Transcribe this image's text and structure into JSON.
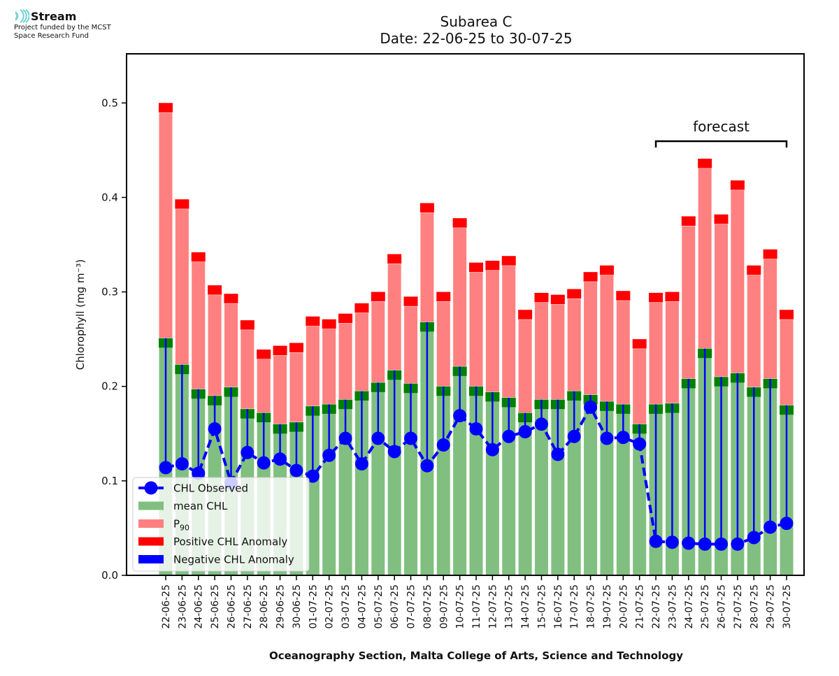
{
  "logo": {
    "name": "Stream",
    "funding_line1": "Project funded by the MCST",
    "funding_line2": "Space Research Fund",
    "icon": "stream-waves-icon",
    "color": "#6fd0d0"
  },
  "chart_data": {
    "type": "bar",
    "title_line1": "Subarea C",
    "title_line2": "Date: 22-06-25 to 30-07-25",
    "xlabel": "Oceanography Section, Malta College of Arts, Science and Technology",
    "ylabel": "Chlorophyll (mg m⁻³)",
    "ylim": [
      0,
      0.552
    ],
    "yticks": [
      "0.0",
      "0.1",
      "0.2",
      "0.3",
      "0.4",
      "0.5"
    ],
    "ytick_values": [
      0.0,
      0.1,
      0.2,
      0.3,
      0.4,
      0.5
    ],
    "grid": false,
    "legend_position": "lower-left",
    "annotation": {
      "text": "forecast",
      "from": "22-07-25",
      "to": "30-07-25"
    },
    "colors": {
      "mean": "#80bf80",
      "mean_cap": "#008000",
      "p90": "#ff8080",
      "positive_anomaly": "#ff0000",
      "negative_anomaly": "#0000ff",
      "observed": "#0000ff"
    },
    "categories": [
      "22-06-25",
      "23-06-25",
      "24-06-25",
      "25-06-25",
      "26-06-25",
      "27-06-25",
      "28-06-25",
      "29-06-25",
      "30-06-25",
      "01-07-25",
      "02-07-25",
      "03-07-25",
      "04-07-25",
      "05-07-25",
      "06-07-25",
      "07-07-25",
      "08-07-25",
      "09-07-25",
      "10-07-25",
      "11-07-25",
      "12-07-25",
      "13-07-25",
      "14-07-25",
      "15-07-25",
      "16-07-25",
      "17-07-25",
      "18-07-25",
      "19-07-25",
      "20-07-25",
      "21-07-25",
      "22-07-25",
      "23-07-25",
      "24-07-25",
      "25-07-25",
      "26-07-25",
      "27-07-25",
      "28-07-25",
      "29-07-25",
      "30-07-25"
    ],
    "series": [
      {
        "name": "mean CHL",
        "values": [
          0.251,
          0.223,
          0.197,
          0.19,
          0.199,
          0.176,
          0.172,
          0.16,
          0.162,
          0.179,
          0.181,
          0.186,
          0.195,
          0.204,
          0.217,
          0.203,
          0.268,
          0.2,
          0.221,
          0.2,
          0.194,
          0.188,
          0.172,
          0.186,
          0.186,
          0.195,
          0.191,
          0.184,
          0.181,
          0.16,
          0.181,
          0.182,
          0.208,
          0.24,
          0.21,
          0.214,
          0.199,
          0.208,
          0.18
        ]
      },
      {
        "name": "P90",
        "values": [
          0.49,
          0.388,
          0.332,
          0.297,
          0.288,
          0.26,
          0.229,
          0.233,
          0.236,
          0.264,
          0.261,
          0.267,
          0.278,
          0.29,
          0.33,
          0.285,
          0.384,
          0.29,
          0.368,
          0.321,
          0.323,
          0.328,
          0.271,
          0.289,
          0.287,
          0.293,
          0.311,
          0.318,
          0.291,
          0.24,
          0.289,
          0.29,
          0.37,
          0.431,
          0.372,
          0.408,
          0.318,
          0.335,
          0.271
        ]
      },
      {
        "name": "CHL Observed",
        "values": [
          0.114,
          0.118,
          0.108,
          0.155,
          0.098,
          0.13,
          0.119,
          0.123,
          0.111,
          0.105,
          0.127,
          0.145,
          0.118,
          0.145,
          0.131,
          0.145,
          0.116,
          0.138,
          0.169,
          0.155,
          0.133,
          0.147,
          0.152,
          0.16,
          0.128,
          0.147,
          0.178,
          0.145,
          0.146,
          0.139,
          0.036,
          0.035,
          0.034,
          0.033,
          0.033,
          0.033,
          0.04,
          0.051,
          0.055
        ]
      }
    ],
    "legend": [
      {
        "label": "CHL Observed",
        "kind": "line-marker",
        "color": "#0000ff"
      },
      {
        "label": "mean CHL",
        "kind": "patch",
        "color": "#80bf80"
      },
      {
        "label": "P",
        "sub": "90",
        "kind": "patch",
        "color": "#ff8080"
      },
      {
        "label": "Positive CHL Anomaly",
        "kind": "patch",
        "color": "#ff0000"
      },
      {
        "label": "Negative CHL Anomaly",
        "kind": "patch",
        "color": "#0000ff"
      }
    ]
  }
}
